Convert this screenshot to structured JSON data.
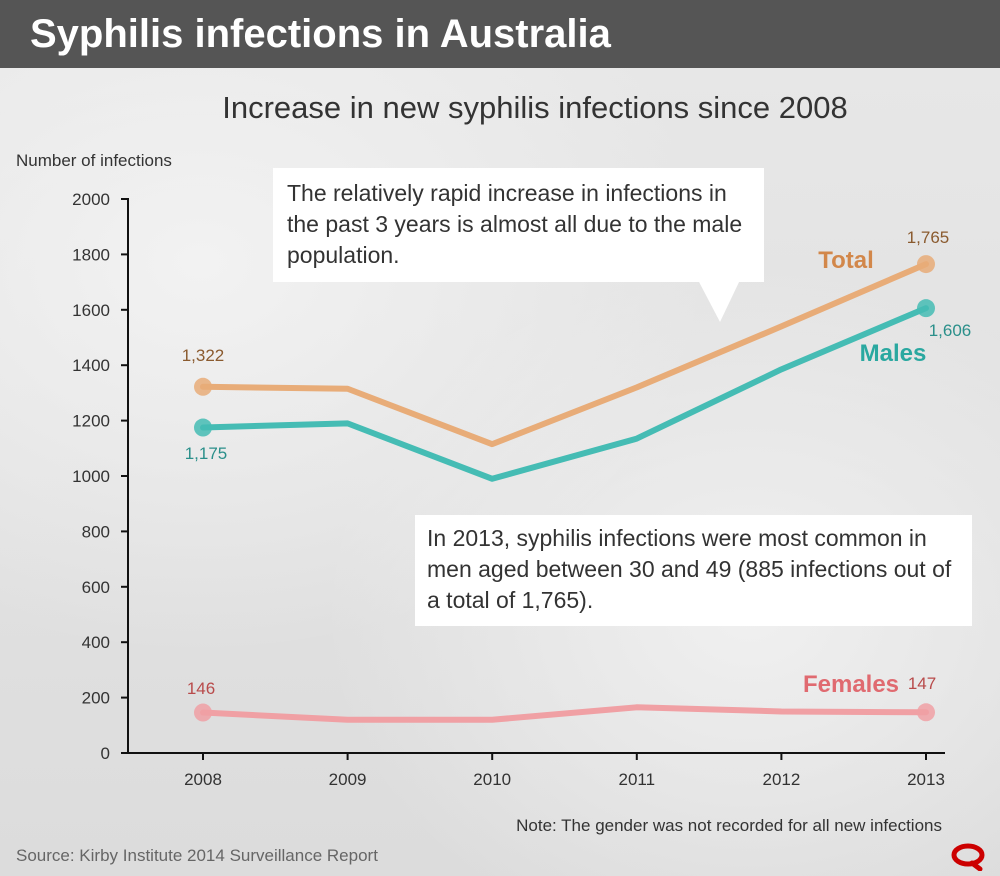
{
  "header": {
    "title": "Syphilis infections in Australia"
  },
  "subtitle": "Increase in new syphilis infections since 2008",
  "callouts": {
    "top": "The relatively rapid increase in infections in the past 3 years is almost all due to the male population.",
    "bottom": "In 2013, syphilis infections were most common in men aged between 30 and 49 (885 infections out of a total of 1,765)."
  },
  "note": "Note: The gender was not recorded for all new infections",
  "source": "Source: Kirby Institute 2014 Surveillance Report",
  "logo": "logo-icon",
  "colors": {
    "total": "#e8ac78",
    "total_label": "#d2874a",
    "total_value": "#8a5a2e",
    "males": "#45bcb4",
    "males_label": "#2aa8a0",
    "males_value": "#2a8f8a",
    "females": "#f0a0a4",
    "females_label": "#e06a70",
    "females_value": "#b84a4a",
    "logo": "#cc0000"
  },
  "chart_data": {
    "type": "line",
    "title": "Increase in new syphilis infections since 2008",
    "xlabel": "",
    "ylabel": "Number of infections",
    "x": [
      "2008",
      "2009",
      "2010",
      "2011",
      "2012",
      "2013"
    ],
    "ylim": [
      0,
      2000
    ],
    "yticks": [
      "0",
      "200",
      "400",
      "600",
      "800",
      "1000",
      "1200",
      "1400",
      "1600",
      "1800",
      "2000"
    ],
    "series": [
      {
        "name": "Total",
        "values": [
          1322,
          1315,
          1115,
          1320,
          1540,
          1765
        ],
        "start_label": "1,322",
        "end_label": "1,765"
      },
      {
        "name": "Males",
        "values": [
          1175,
          1190,
          990,
          1135,
          1385,
          1606
        ],
        "start_label": "1,175",
        "end_label": "1,606"
      },
      {
        "name": "Females",
        "values": [
          146,
          120,
          120,
          165,
          150,
          147
        ],
        "start_label": "146",
        "end_label": "147"
      }
    ],
    "grid": false,
    "legend": "inline labels"
  }
}
